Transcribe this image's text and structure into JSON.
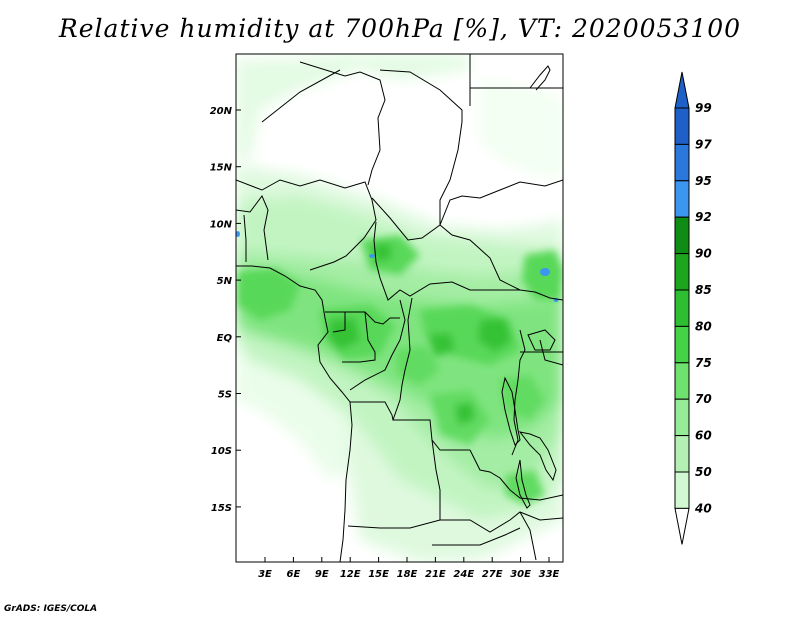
{
  "title": "Relative humidity at 700hPa [%], VT: 2020053100",
  "credit": "GrADS: IGES/COLA",
  "y_ticks": [
    "20N",
    "15N",
    "10N",
    "5N",
    "EQ",
    "5S",
    "10S",
    "15S"
  ],
  "x_ticks": [
    "3E",
    "6E",
    "9E",
    "12E",
    "15E",
    "18E",
    "21E",
    "24E",
    "27E",
    "30E",
    "33E"
  ],
  "colorbar": {
    "levels": [
      "99",
      "97",
      "95",
      "92",
      "90",
      "85",
      "80",
      "75",
      "70",
      "60",
      "50",
      "40"
    ],
    "colors": [
      "#1e5fc8",
      "#2a78dc",
      "#3c96f0",
      "#0f8c14",
      "#1ea51e",
      "#2dbe32",
      "#46d246",
      "#6ee16e",
      "#96eb96",
      "#b4f0b4",
      "#d2f8d2",
      "#eafdea"
    ]
  }
}
